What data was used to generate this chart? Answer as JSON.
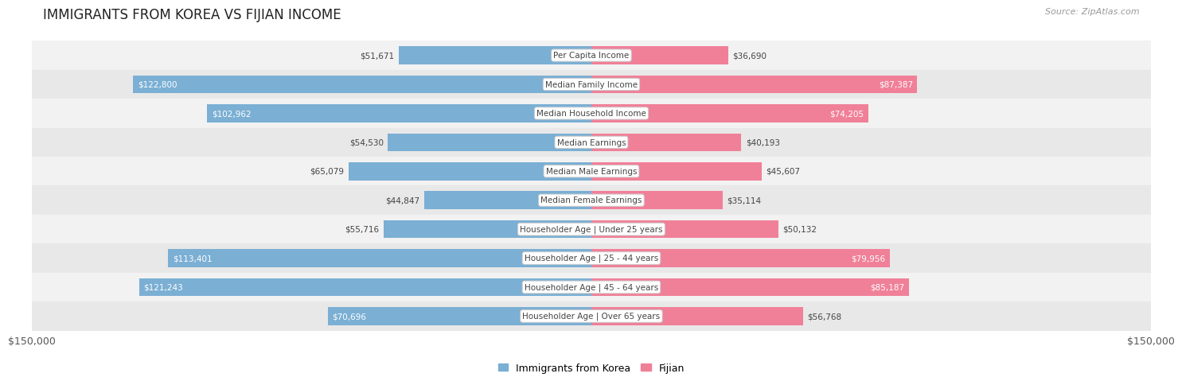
{
  "title": "IMMIGRANTS FROM KOREA VS FIJIAN INCOME",
  "source": "Source: ZipAtlas.com",
  "categories": [
    "Per Capita Income",
    "Median Family Income",
    "Median Household Income",
    "Median Earnings",
    "Median Male Earnings",
    "Median Female Earnings",
    "Householder Age | Under 25 years",
    "Householder Age | 25 - 44 years",
    "Householder Age | 45 - 64 years",
    "Householder Age | Over 65 years"
  ],
  "korea_values": [
    51671,
    122800,
    102962,
    54530,
    65079,
    44847,
    55716,
    113401,
    121243,
    70696
  ],
  "fijian_values": [
    36690,
    87387,
    74205,
    40193,
    45607,
    35114,
    50132,
    79956,
    85187,
    56768
  ],
  "korea_labels": [
    "$51,671",
    "$122,800",
    "$102,962",
    "$54,530",
    "$65,079",
    "$44,847",
    "$55,716",
    "$113,401",
    "$121,243",
    "$70,696"
  ],
  "fijian_labels": [
    "$36,690",
    "$87,387",
    "$74,205",
    "$40,193",
    "$45,607",
    "$35,114",
    "$50,132",
    "$79,956",
    "$85,187",
    "$56,768"
  ],
  "korea_color": "#7bafd4",
  "fijian_color": "#f08098",
  "max_value": 150000,
  "bg_color": "#ffffff",
  "legend_korea": "Immigrants from Korea",
  "legend_fijian": "Fijian",
  "axis_label_left": "$150,000",
  "axis_label_right": "$150,000",
  "inside_threshold": 0.45
}
